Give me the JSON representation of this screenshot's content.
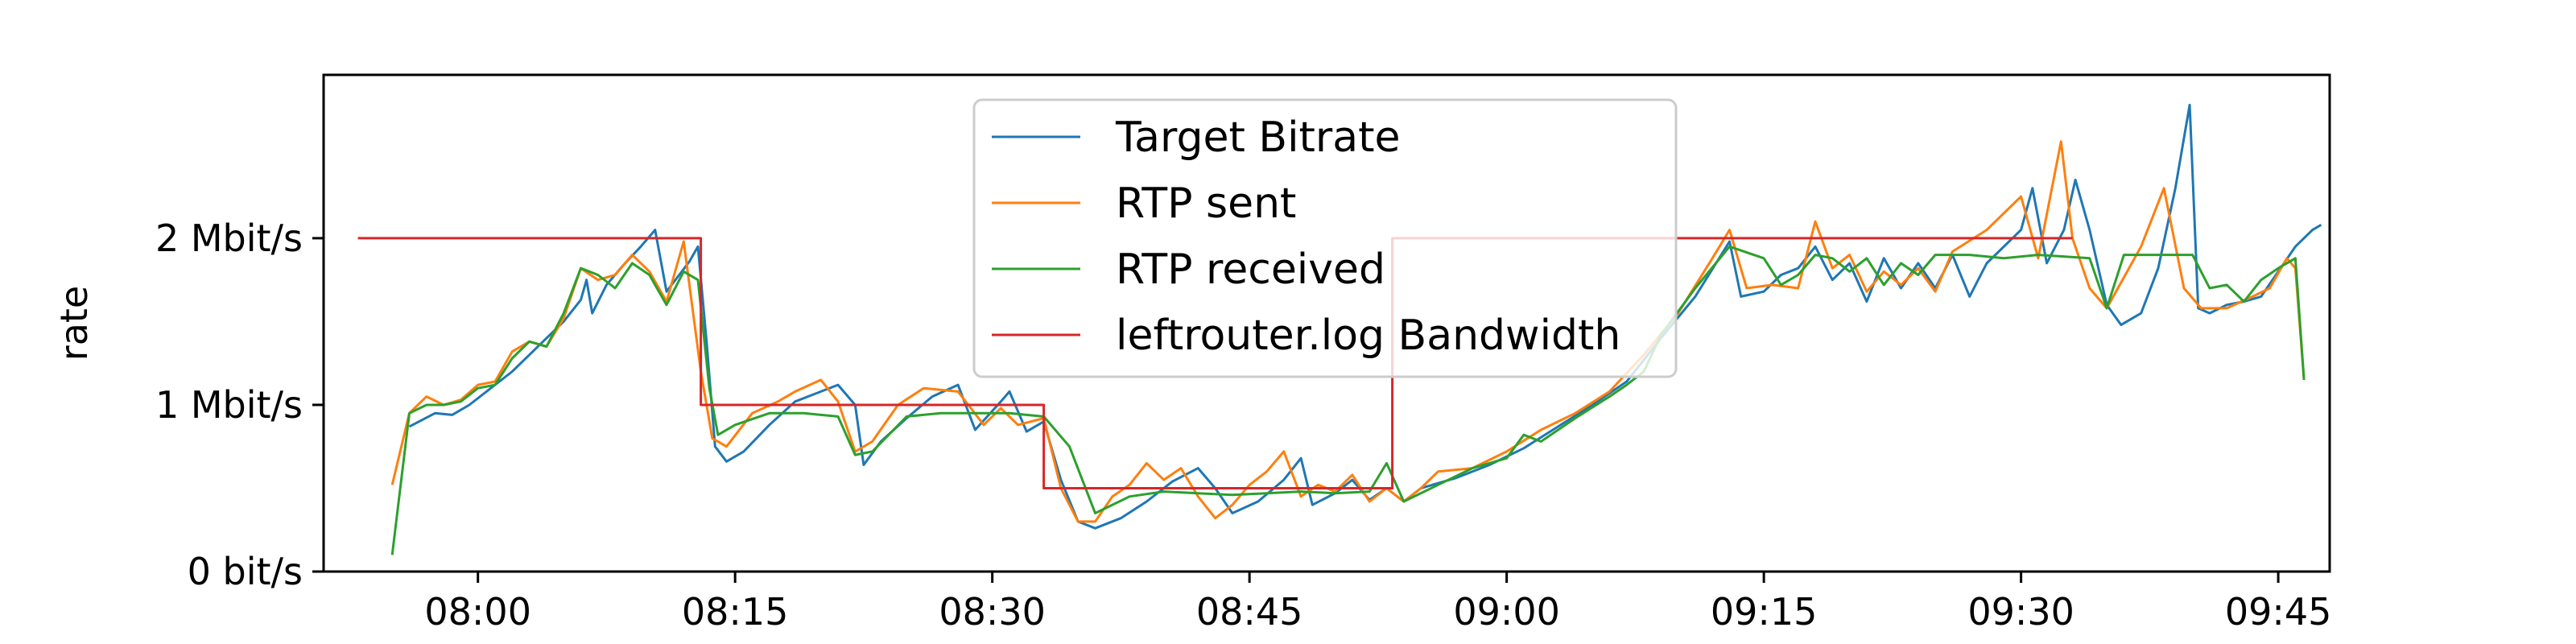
{
  "chart_data": {
    "type": "line",
    "title": "",
    "xlabel": "",
    "ylabel": "rate",
    "x_unit": "time",
    "xlim": [
      "07:51",
      "09:48"
    ],
    "ylim": [
      0,
      2.98
    ],
    "y_unit": "Mbit/s",
    "x_ticks": [
      "08:00",
      "08:15",
      "08:30",
      "08:45",
      "09:00",
      "09:15",
      "09:30",
      "09:45"
    ],
    "y_ticks": [
      {
        "value": 0,
        "label": "0 bit/s"
      },
      {
        "value": 1,
        "label": "1 Mbit/s"
      },
      {
        "value": 2,
        "label": "2 Mbit/s"
      }
    ],
    "grid": false,
    "legend_position": "top-center",
    "series": [
      {
        "name": "Target Bitrate",
        "color": "#1f77b4",
        "points": [
          [
            "07:56:00",
            0.87
          ],
          [
            "07:57:30",
            0.95
          ],
          [
            "07:58:30",
            0.94
          ],
          [
            "07:59:30",
            1.0
          ],
          [
            "08:00:30",
            1.08
          ],
          [
            "08:02:00",
            1.2
          ],
          [
            "08:03:00",
            1.3
          ],
          [
            "08:04:00",
            1.4
          ],
          [
            "08:05:00",
            1.5
          ],
          [
            "08:06:00",
            1.63
          ],
          [
            "08:06:20",
            1.75
          ],
          [
            "08:06:40",
            1.55
          ],
          [
            "08:07:30",
            1.72
          ],
          [
            "08:08:30",
            1.84
          ],
          [
            "08:09:30",
            1.95
          ],
          [
            "08:10:20",
            2.05
          ],
          [
            "08:11:00",
            1.68
          ],
          [
            "08:12:20",
            1.86
          ],
          [
            "08:12:50",
            1.95
          ],
          [
            "08:13:20",
            1.38
          ],
          [
            "08:13:50",
            0.75
          ],
          [
            "08:14:30",
            0.66
          ],
          [
            "08:15:30",
            0.72
          ],
          [
            "08:17:00",
            0.88
          ],
          [
            "08:18:30",
            1.02
          ],
          [
            "08:20:00",
            1.08
          ],
          [
            "08:21:00",
            1.12
          ],
          [
            "08:22:00",
            1.0
          ],
          [
            "08:22:30",
            0.64
          ],
          [
            "08:23:30",
            0.78
          ],
          [
            "08:25:00",
            0.92
          ],
          [
            "08:26:30",
            1.05
          ],
          [
            "08:28:00",
            1.12
          ],
          [
            "08:29:00",
            0.85
          ],
          [
            "08:30:30",
            1.02
          ],
          [
            "08:31:00",
            1.08
          ],
          [
            "08:32:00",
            0.84
          ],
          [
            "08:33:00",
            0.9
          ],
          [
            "08:34:00",
            0.55
          ],
          [
            "08:35:00",
            0.3
          ],
          [
            "08:36:00",
            0.26
          ],
          [
            "08:37:30",
            0.32
          ],
          [
            "08:39:00",
            0.42
          ],
          [
            "08:40:30",
            0.54
          ],
          [
            "08:42:00",
            0.62
          ],
          [
            "08:43:00",
            0.5
          ],
          [
            "08:44:00",
            0.35
          ],
          [
            "08:45:30",
            0.42
          ],
          [
            "08:47:00",
            0.55
          ],
          [
            "08:48:00",
            0.68
          ],
          [
            "08:48:40",
            0.4
          ],
          [
            "08:50:00",
            0.47
          ],
          [
            "08:51:00",
            0.55
          ],
          [
            "08:52:00",
            0.43
          ],
          [
            "08:53:00",
            0.5
          ],
          [
            "08:54:00",
            0.42
          ],
          [
            "08:55:00",
            0.5
          ],
          [
            "08:57:00",
            0.56
          ],
          [
            "08:59:00",
            0.64
          ],
          [
            "09:01:00",
            0.74
          ],
          [
            "09:03:00",
            0.87
          ],
          [
            "09:05:00",
            1.0
          ],
          [
            "09:07:00",
            1.14
          ],
          [
            "09:09:00",
            1.4
          ],
          [
            "09:11:00",
            1.65
          ],
          [
            "09:13:00",
            1.98
          ],
          [
            "09:13:40",
            1.65
          ],
          [
            "09:15:00",
            1.68
          ],
          [
            "09:16:00",
            1.78
          ],
          [
            "09:17:00",
            1.82
          ],
          [
            "09:18:00",
            1.95
          ],
          [
            "09:19:00",
            1.75
          ],
          [
            "09:20:00",
            1.85
          ],
          [
            "09:21:00",
            1.62
          ],
          [
            "09:22:00",
            1.88
          ],
          [
            "09:23:00",
            1.7
          ],
          [
            "09:24:00",
            1.85
          ],
          [
            "09:25:00",
            1.7
          ],
          [
            "09:26:00",
            1.9
          ],
          [
            "09:27:00",
            1.65
          ],
          [
            "09:28:00",
            1.85
          ],
          [
            "09:30:00",
            2.05
          ],
          [
            "09:30:40",
            2.3
          ],
          [
            "09:31:30",
            1.85
          ],
          [
            "09:32:30",
            2.05
          ],
          [
            "09:33:10",
            2.35
          ],
          [
            "09:34:00",
            2.05
          ],
          [
            "09:35:00",
            1.6
          ],
          [
            "09:35:50",
            1.48
          ],
          [
            "09:37:00",
            1.55
          ],
          [
            "09:38:00",
            1.82
          ],
          [
            "09:39:00",
            2.3
          ],
          [
            "09:39:50",
            2.8
          ],
          [
            "09:40:20",
            1.58
          ],
          [
            "09:41:00",
            1.55
          ],
          [
            "09:42:00",
            1.6
          ],
          [
            "09:43:00",
            1.62
          ],
          [
            "09:44:00",
            1.65
          ],
          [
            "09:45:00",
            1.8
          ],
          [
            "09:46:00",
            1.95
          ],
          [
            "09:47:00",
            2.05
          ],
          [
            "09:47:30",
            2.08
          ]
        ]
      },
      {
        "name": "RTP sent",
        "color": "#ff7f0e",
        "points": [
          [
            "07:55:00",
            0.52
          ],
          [
            "07:56:00",
            0.95
          ],
          [
            "07:57:00",
            1.05
          ],
          [
            "07:58:00",
            1.0
          ],
          [
            "07:59:00",
            1.03
          ],
          [
            "08:00:00",
            1.12
          ],
          [
            "08:01:00",
            1.14
          ],
          [
            "08:02:00",
            1.32
          ],
          [
            "08:03:00",
            1.38
          ],
          [
            "08:04:00",
            1.35
          ],
          [
            "08:05:00",
            1.52
          ],
          [
            "08:06:00",
            1.82
          ],
          [
            "08:07:00",
            1.75
          ],
          [
            "08:08:00",
            1.78
          ],
          [
            "08:09:00",
            1.9
          ],
          [
            "08:10:00",
            1.8
          ],
          [
            "08:11:00",
            1.62
          ],
          [
            "08:12:00",
            1.98
          ],
          [
            "08:13:00",
            1.2
          ],
          [
            "08:13:40",
            0.8
          ],
          [
            "08:14:30",
            0.75
          ],
          [
            "08:16:00",
            0.95
          ],
          [
            "08:17:30",
            1.02
          ],
          [
            "08:18:30",
            1.08
          ],
          [
            "08:20:00",
            1.15
          ],
          [
            "08:21:00",
            1.02
          ],
          [
            "08:22:00",
            0.72
          ],
          [
            "08:23:00",
            0.78
          ],
          [
            "08:24:30",
            1.0
          ],
          [
            "08:26:00",
            1.1
          ],
          [
            "08:28:00",
            1.08
          ],
          [
            "08:29:30",
            0.88
          ],
          [
            "08:30:30",
            0.98
          ],
          [
            "08:31:30",
            0.88
          ],
          [
            "08:33:00",
            0.92
          ],
          [
            "08:34:00",
            0.5
          ],
          [
            "08:35:00",
            0.3
          ],
          [
            "08:36:00",
            0.3
          ],
          [
            "08:37:00",
            0.45
          ],
          [
            "08:38:00",
            0.52
          ],
          [
            "08:39:00",
            0.65
          ],
          [
            "08:40:00",
            0.55
          ],
          [
            "08:41:00",
            0.62
          ],
          [
            "08:42:00",
            0.45
          ],
          [
            "08:43:00",
            0.32
          ],
          [
            "08:44:00",
            0.4
          ],
          [
            "08:45:00",
            0.52
          ],
          [
            "08:46:00",
            0.6
          ],
          [
            "08:47:00",
            0.72
          ],
          [
            "08:48:00",
            0.45
          ],
          [
            "08:49:00",
            0.52
          ],
          [
            "08:50:00",
            0.48
          ],
          [
            "08:51:00",
            0.58
          ],
          [
            "08:52:00",
            0.42
          ],
          [
            "08:53:00",
            0.5
          ],
          [
            "08:54:00",
            0.42
          ],
          [
            "08:55:00",
            0.5
          ],
          [
            "08:56:00",
            0.6
          ],
          [
            "08:58:00",
            0.62
          ],
          [
            "09:00:00",
            0.72
          ],
          [
            "09:02:00",
            0.85
          ],
          [
            "09:04:00",
            0.95
          ],
          [
            "09:06:00",
            1.08
          ],
          [
            "09:08:00",
            1.3
          ],
          [
            "09:10:00",
            1.55
          ],
          [
            "09:12:00",
            1.88
          ],
          [
            "09:13:00",
            2.05
          ],
          [
            "09:14:00",
            1.7
          ],
          [
            "09:15:30",
            1.72
          ],
          [
            "09:17:00",
            1.7
          ],
          [
            "09:18:00",
            2.1
          ],
          [
            "09:19:00",
            1.82
          ],
          [
            "09:20:00",
            1.9
          ],
          [
            "09:21:00",
            1.68
          ],
          [
            "09:22:00",
            1.8
          ],
          [
            "09:23:00",
            1.72
          ],
          [
            "09:24:00",
            1.82
          ],
          [
            "09:25:00",
            1.68
          ],
          [
            "09:26:00",
            1.92
          ],
          [
            "09:28:00",
            2.05
          ],
          [
            "09:30:00",
            2.25
          ],
          [
            "09:31:00",
            1.88
          ],
          [
            "09:32:20",
            2.58
          ],
          [
            "09:33:00",
            2.0
          ],
          [
            "09:34:00",
            1.7
          ],
          [
            "09:35:00",
            1.58
          ],
          [
            "09:37:00",
            1.95
          ],
          [
            "09:38:20",
            2.3
          ],
          [
            "09:39:30",
            1.7
          ],
          [
            "09:40:30",
            1.58
          ],
          [
            "09:42:00",
            1.58
          ],
          [
            "09:43:30",
            1.65
          ],
          [
            "09:44:30",
            1.7
          ],
          [
            "09:45:30",
            1.88
          ],
          [
            "09:46:00",
            1.82
          ],
          [
            "09:46:30",
            1.15
          ]
        ]
      },
      {
        "name": "RTP received",
        "color": "#2ca02c",
        "points": [
          [
            "07:55:00",
            0.1
          ],
          [
            "07:56:00",
            0.95
          ],
          [
            "07:57:00",
            1.0
          ],
          [
            "07:58:00",
            1.0
          ],
          [
            "07:59:00",
            1.02
          ],
          [
            "08:00:00",
            1.1
          ],
          [
            "08:01:00",
            1.12
          ],
          [
            "08:02:00",
            1.28
          ],
          [
            "08:03:00",
            1.38
          ],
          [
            "08:04:00",
            1.35
          ],
          [
            "08:05:00",
            1.55
          ],
          [
            "08:06:00",
            1.82
          ],
          [
            "08:07:00",
            1.78
          ],
          [
            "08:08:00",
            1.7
          ],
          [
            "08:09:00",
            1.85
          ],
          [
            "08:10:00",
            1.78
          ],
          [
            "08:11:00",
            1.6
          ],
          [
            "08:12:00",
            1.8
          ],
          [
            "08:12:50",
            1.75
          ],
          [
            "08:13:30",
            1.1
          ],
          [
            "08:14:00",
            0.82
          ],
          [
            "08:15:00",
            0.88
          ],
          [
            "08:17:00",
            0.95
          ],
          [
            "08:19:00",
            0.95
          ],
          [
            "08:21:00",
            0.93
          ],
          [
            "08:22:00",
            0.7
          ],
          [
            "08:23:00",
            0.72
          ],
          [
            "08:25:00",
            0.93
          ],
          [
            "08:27:00",
            0.95
          ],
          [
            "08:29:00",
            0.95
          ],
          [
            "08:31:00",
            0.95
          ],
          [
            "08:33:00",
            0.93
          ],
          [
            "08:34:30",
            0.75
          ],
          [
            "08:36:00",
            0.35
          ],
          [
            "08:38:00",
            0.45
          ],
          [
            "08:40:00",
            0.48
          ],
          [
            "08:42:00",
            0.47
          ],
          [
            "08:44:00",
            0.46
          ],
          [
            "08:46:00",
            0.47
          ],
          [
            "08:48:00",
            0.48
          ],
          [
            "08:50:00",
            0.47
          ],
          [
            "08:52:00",
            0.48
          ],
          [
            "08:53:00",
            0.65
          ],
          [
            "08:54:00",
            0.42
          ],
          [
            "08:56:00",
            0.52
          ],
          [
            "08:58:00",
            0.62
          ],
          [
            "09:00:00",
            0.68
          ],
          [
            "09:01:00",
            0.82
          ],
          [
            "09:02:00",
            0.78
          ],
          [
            "09:04:00",
            0.92
          ],
          [
            "09:06:00",
            1.05
          ],
          [
            "09:07:00",
            1.12
          ],
          [
            "09:08:00",
            1.2
          ],
          [
            "09:09:00",
            1.42
          ],
          [
            "09:11:00",
            1.7
          ],
          [
            "09:13:00",
            1.95
          ],
          [
            "09:15:00",
            1.88
          ],
          [
            "09:16:00",
            1.72
          ],
          [
            "09:17:00",
            1.78
          ],
          [
            "09:18:00",
            1.9
          ],
          [
            "09:19:00",
            1.88
          ],
          [
            "09:20:00",
            1.8
          ],
          [
            "09:21:00",
            1.88
          ],
          [
            "09:22:00",
            1.72
          ],
          [
            "09:23:00",
            1.85
          ],
          [
            "09:24:00",
            1.78
          ],
          [
            "09:25:00",
            1.9
          ],
          [
            "09:27:00",
            1.9
          ],
          [
            "09:29:00",
            1.88
          ],
          [
            "09:31:00",
            1.9
          ],
          [
            "09:34:00",
            1.88
          ],
          [
            "09:35:00",
            1.58
          ],
          [
            "09:36:00",
            1.9
          ],
          [
            "09:40:00",
            1.9
          ],
          [
            "09:41:00",
            1.7
          ],
          [
            "09:42:00",
            1.72
          ],
          [
            "09:43:00",
            1.62
          ],
          [
            "09:44:00",
            1.75
          ],
          [
            "09:45:00",
            1.82
          ],
          [
            "09:46:00",
            1.88
          ],
          [
            "09:46:30",
            1.15
          ]
        ]
      },
      {
        "name": "leftrouter.log Bandwidth",
        "color": "#d62728",
        "points": [
          [
            "07:53:00",
            2.0
          ],
          [
            "08:13:00",
            2.0
          ],
          [
            "08:13:00",
            1.0
          ],
          [
            "08:33:00",
            1.0
          ],
          [
            "08:33:00",
            0.5
          ],
          [
            "08:53:20",
            0.5
          ],
          [
            "08:53:20",
            2.0
          ],
          [
            "09:33:00",
            2.0
          ]
        ]
      }
    ]
  }
}
